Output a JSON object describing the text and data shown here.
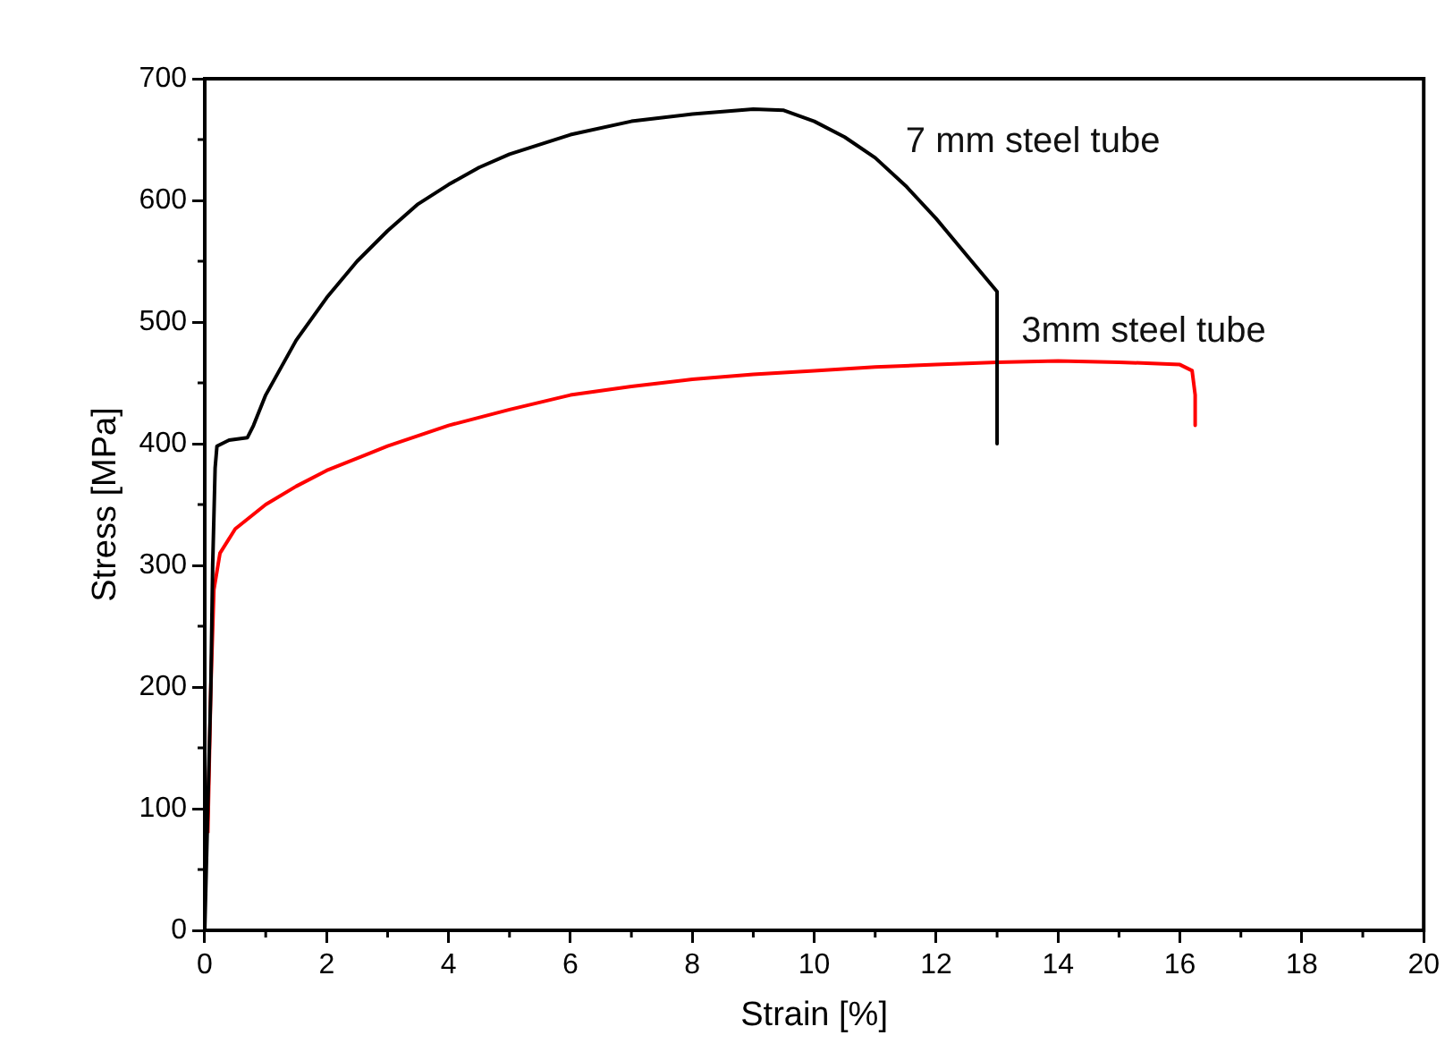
{
  "chart_data": {
    "type": "line",
    "xlabel": "Strain [%]",
    "ylabel": "Stress [MPa]",
    "xlim": [
      0,
      20
    ],
    "ylim": [
      0,
      700
    ],
    "xticks": [
      0,
      2,
      4,
      6,
      8,
      10,
      12,
      14,
      16,
      18,
      20
    ],
    "yticks": [
      0,
      100,
      200,
      300,
      400,
      500,
      600,
      700
    ],
    "grid": false,
    "legend": false,
    "marker": "none",
    "line_style": "solid",
    "series": [
      {
        "name": "7 mm steel tube",
        "color": "#000000",
        "x": [
          0,
          0.05,
          0.1,
          0.13,
          0.17,
          0.2,
          0.4,
          0.7,
          0.8,
          1,
          1.5,
          2,
          2.5,
          3,
          3.5,
          4,
          4.5,
          5,
          6,
          7,
          8,
          9,
          9.5,
          10,
          10.5,
          11,
          11.5,
          12,
          12.5,
          13,
          13
        ],
        "values": [
          0,
          100,
          200,
          300,
          380,
          398,
          403,
          405,
          415,
          440,
          485,
          520,
          550,
          575,
          597,
          613,
          627,
          638,
          654,
          665,
          671,
          675,
          674,
          665,
          652,
          635,
          612,
          585,
          555,
          525,
          400
        ]
      },
      {
        "name": "3mm steel tube",
        "color": "#ff0000",
        "x": [
          0.05,
          0.1,
          0.15,
          0.25,
          0.5,
          1,
          1.5,
          2,
          3,
          4,
          5,
          6,
          7,
          8,
          9,
          10,
          11,
          12,
          13,
          14,
          15,
          16,
          16.2,
          16.25,
          16.25
        ],
        "values": [
          80,
          200,
          280,
          310,
          330,
          350,
          365,
          378,
          398,
          415,
          428,
          440,
          447,
          453,
          457,
          460,
          463,
          465,
          467,
          468,
          467,
          465,
          460,
          440,
          415
        ]
      }
    ]
  }
}
